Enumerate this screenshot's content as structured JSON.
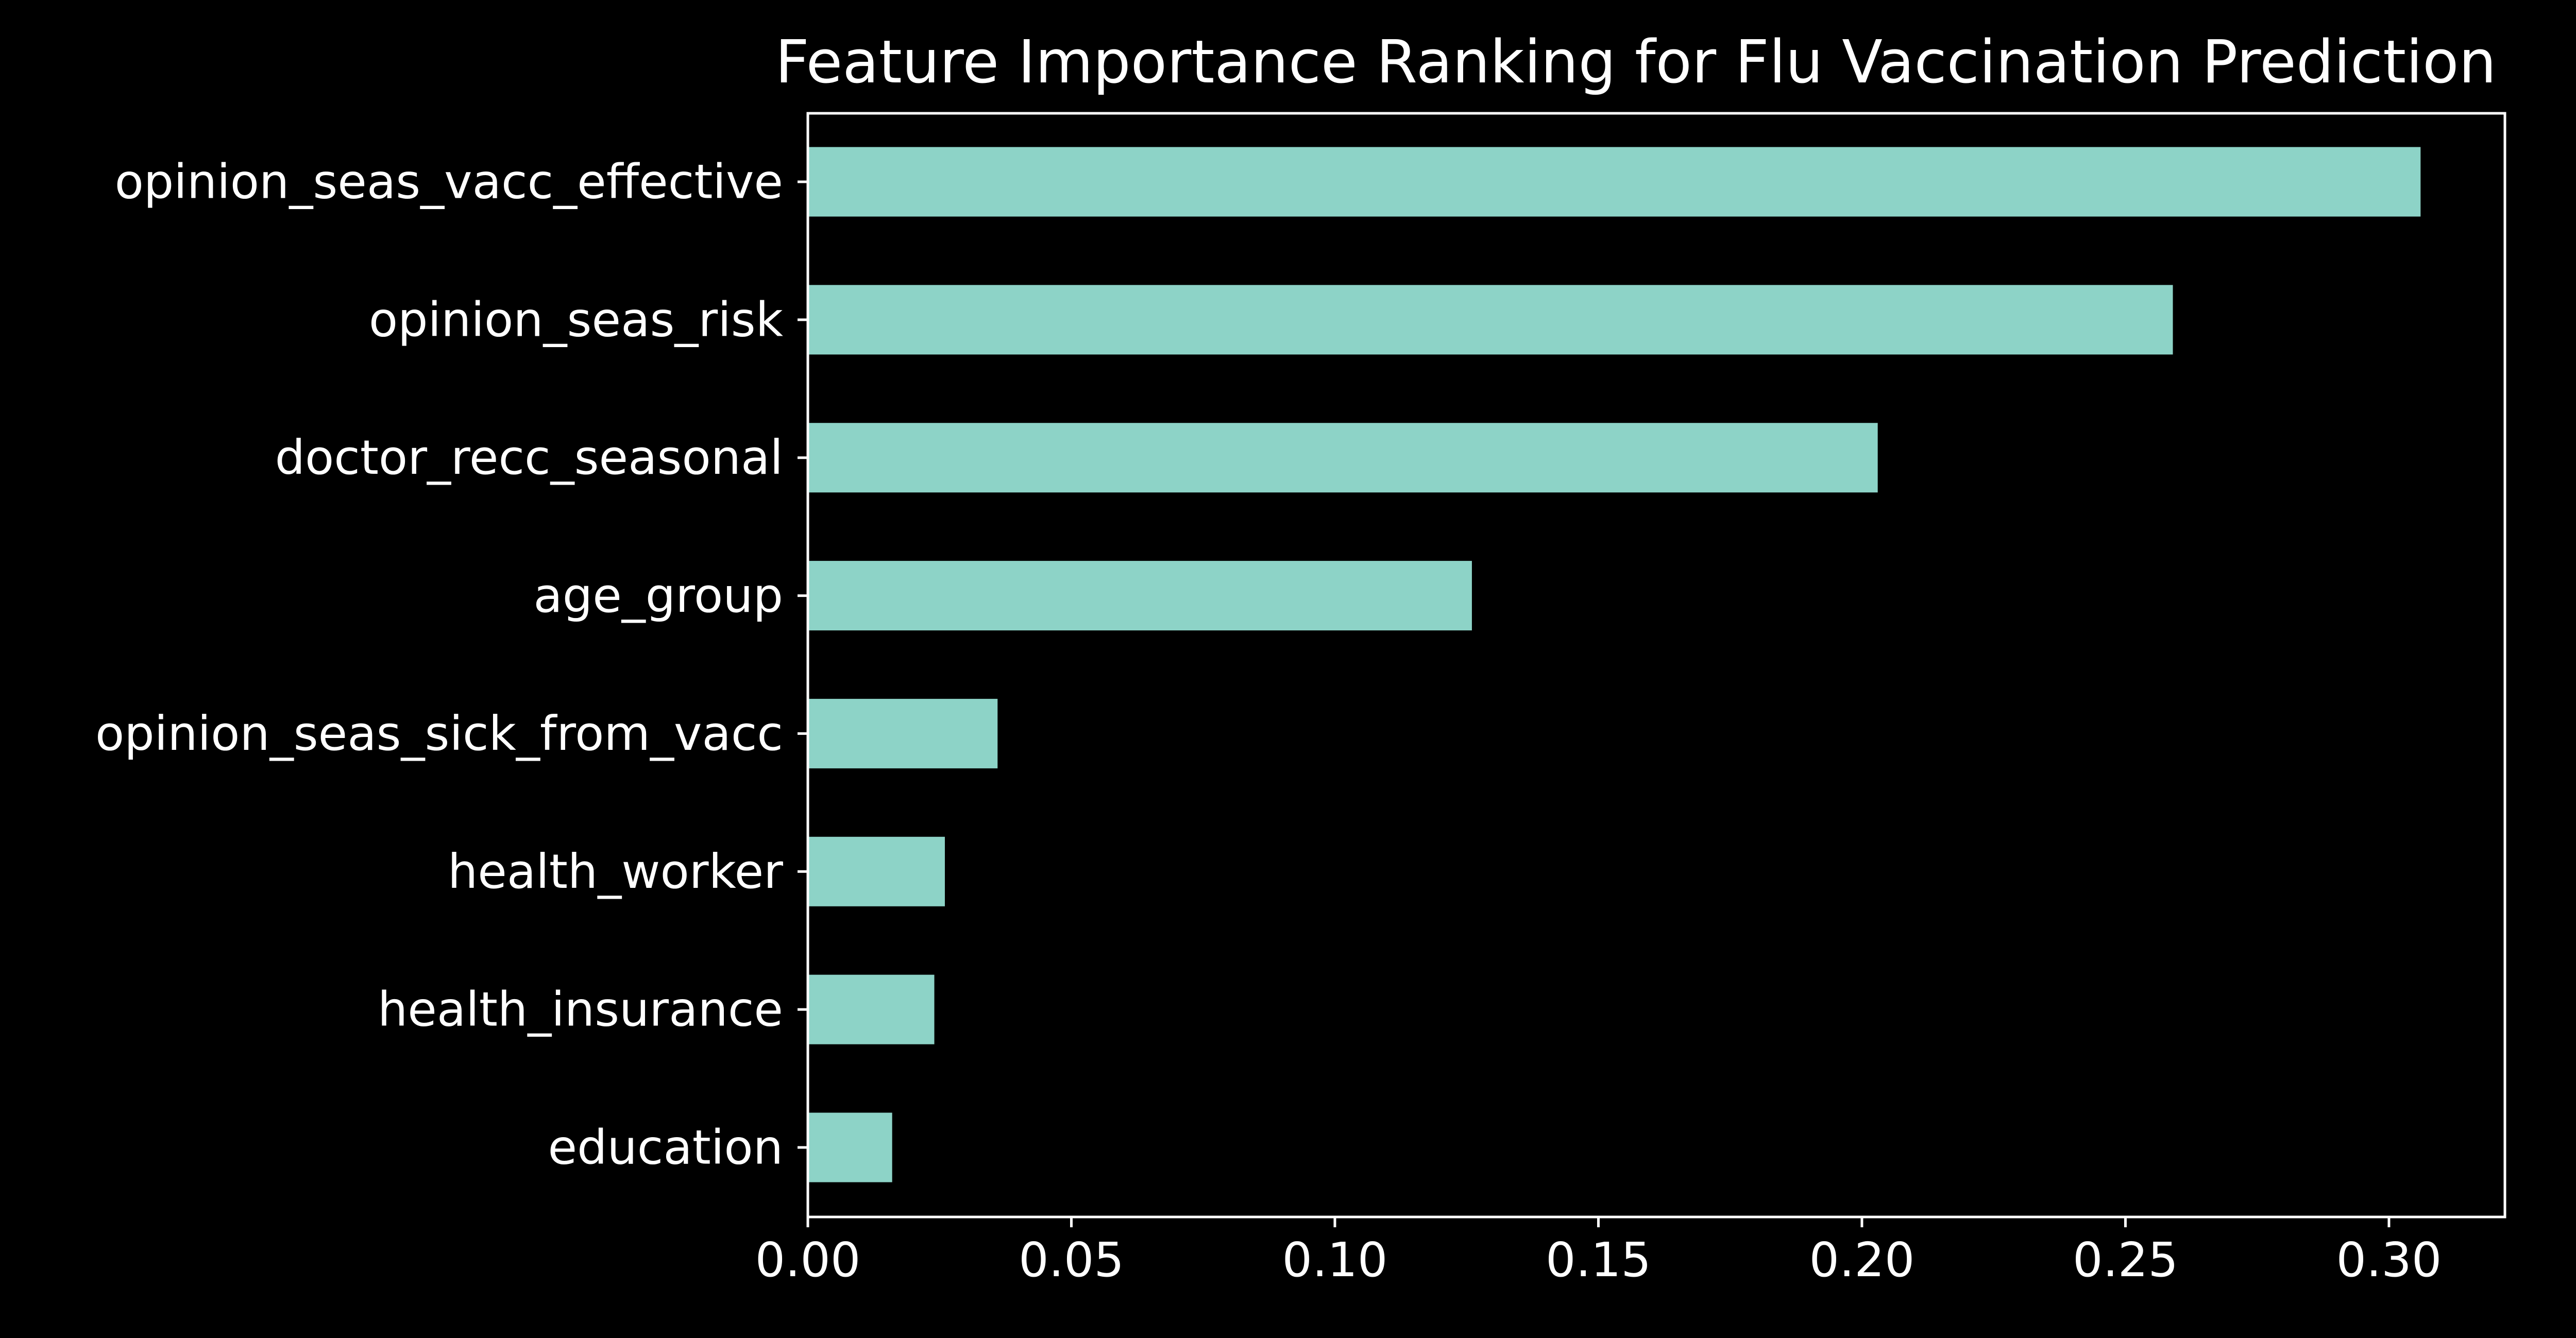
{
  "chart_data": {
    "type": "bar",
    "orientation": "horizontal",
    "title": "Feature Importance Ranking for Flu Vaccination Prediction",
    "xlabel": "",
    "ylabel": "",
    "categories": [
      "opinion_seas_vacc_effective",
      "opinion_seas_risk",
      "doctor_recc_seasonal",
      "age_group",
      "opinion_seas_sick_from_vacc",
      "health_worker",
      "health_insurance",
      "education"
    ],
    "values": [
      0.306,
      0.259,
      0.203,
      0.126,
      0.036,
      0.026,
      0.024,
      0.016
    ],
    "xlim": [
      0,
      0.322
    ],
    "xticks": [
      "0.00",
      "0.05",
      "0.10",
      "0.15",
      "0.20",
      "0.25",
      "0.30"
    ],
    "grid": false,
    "colors": {
      "bar": "#8dd3c7",
      "background": "#000000",
      "axes": "#ffffff",
      "text": "#ffffff"
    }
  }
}
